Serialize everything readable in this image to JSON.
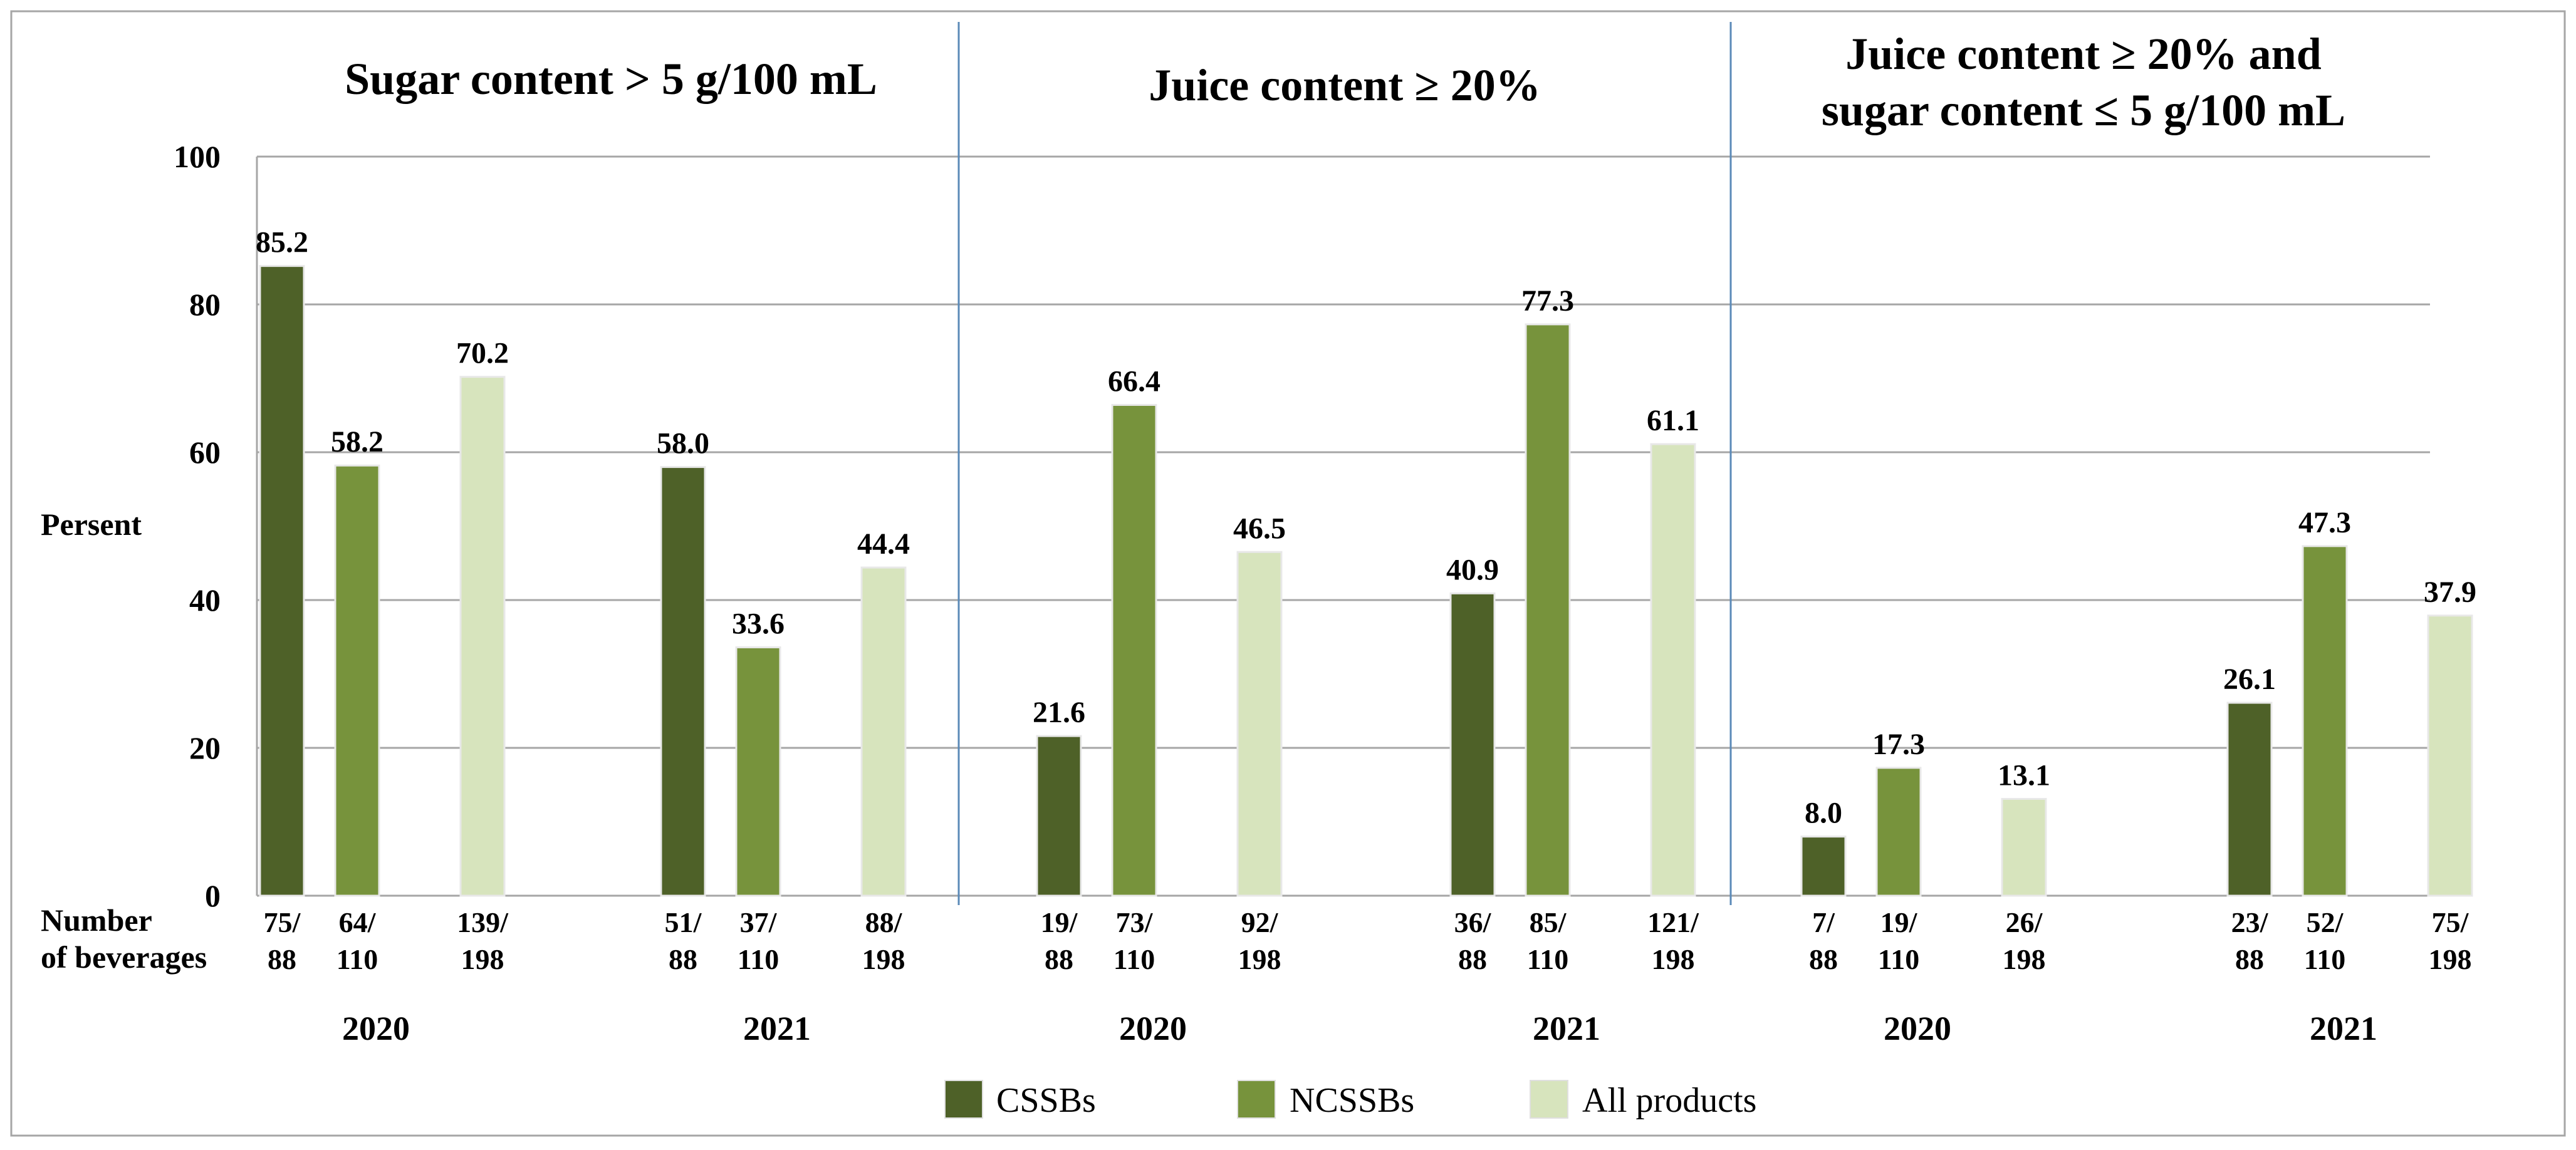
{
  "chart_data": {
    "type": "bar",
    "ylabel": "Persent",
    "xlabel_left": [
      "Number",
      "of beverages"
    ],
    "ylim": [
      0,
      100
    ],
    "yticks": [
      0,
      20,
      40,
      60,
      80,
      100
    ],
    "grid": true,
    "legend_position": "bottom-center",
    "series": [
      {
        "name": "CSSBs",
        "color": "#4e6128"
      },
      {
        "name": "NCSSBs",
        "color": "#77933c"
      },
      {
        "name": "All products",
        "color": "#d7e4bd"
      }
    ],
    "panels": [
      {
        "title": [
          "Sugar content > 5 g/100 mL"
        ],
        "years": [
          {
            "year": "2020",
            "values": [
              85.2,
              58.2,
              70.2
            ],
            "labels": [
              "85.2",
              "58.2",
              "70.2"
            ],
            "counts": [
              [
                "75/",
                "88"
              ],
              [
                "64/",
                "110"
              ],
              [
                "139/",
                "198"
              ]
            ]
          },
          {
            "year": "2021",
            "values": [
              58.0,
              33.6,
              44.4
            ],
            "labels": [
              "58.0",
              "33.6",
              "44.4"
            ],
            "counts": [
              [
                "51/",
                "88"
              ],
              [
                "37/",
                "110"
              ],
              [
                "88/",
                "198"
              ]
            ]
          }
        ]
      },
      {
        "title": [
          "Juice content ≥ 20%"
        ],
        "years": [
          {
            "year": "2020",
            "values": [
              21.6,
              66.4,
              46.5
            ],
            "labels": [
              "21.6",
              "66.4",
              "46.5"
            ],
            "counts": [
              [
                "19/",
                "88"
              ],
              [
                "73/",
                "110"
              ],
              [
                "92/",
                "198"
              ]
            ]
          },
          {
            "year": "2021",
            "values": [
              40.9,
              77.3,
              61.1
            ],
            "labels": [
              "40.9",
              "77.3",
              "61.1"
            ],
            "counts": [
              [
                "36/",
                "88"
              ],
              [
                "85/",
                "110"
              ],
              [
                "121/",
                "198"
              ]
            ]
          }
        ]
      },
      {
        "title": [
          "Juice content ≥ 20% and",
          "sugar content ≤ 5 g/100 mL"
        ],
        "years": [
          {
            "year": "2020",
            "values": [
              8.0,
              17.3,
              13.1
            ],
            "labels": [
              "8.0",
              "17.3",
              "13.1"
            ],
            "counts": [
              [
                "7/",
                "88"
              ],
              [
                "19/",
                "110"
              ],
              [
                "26/",
                "198"
              ]
            ]
          },
          {
            "year": "2021",
            "values": [
              26.1,
              47.3,
              37.9
            ],
            "labels": [
              "26.1",
              "47.3",
              "37.9"
            ],
            "counts": [
              [
                "23/",
                "88"
              ],
              [
                "52/",
                "110"
              ],
              [
                "75/",
                "198"
              ]
            ]
          }
        ]
      }
    ]
  }
}
